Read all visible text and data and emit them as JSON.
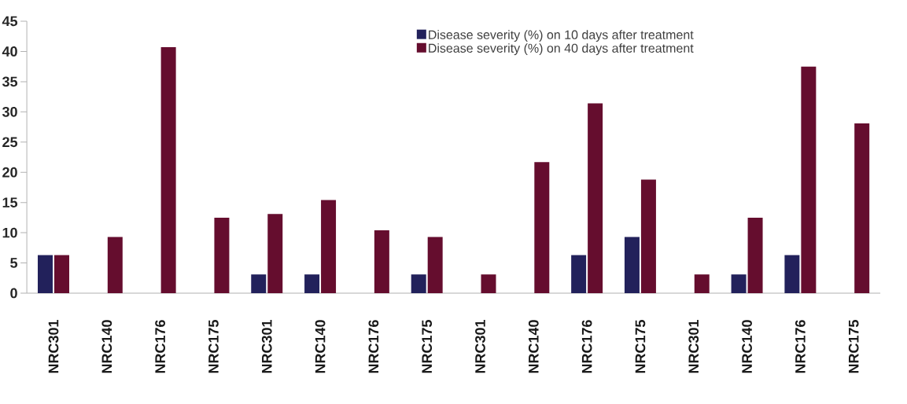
{
  "chart_data": {
    "type": "bar",
    "categories": [
      "NRC301",
      "NRC140",
      "NRC176",
      "NRC175",
      "NRC301",
      "NRC140",
      "NRC176",
      "NRC175",
      "NRC301",
      "NRC140",
      "NRC176",
      "NRC175",
      "NRC301",
      "NRC140",
      "NRC176",
      "NRC175"
    ],
    "series": [
      {
        "name": "Disease severity (%) on 10 days after treatment",
        "color": "#22215b",
        "values": [
          6.3,
          0,
          0,
          0,
          3.1,
          3.1,
          0,
          3.1,
          0,
          0,
          6.3,
          9.3,
          0,
          3.1,
          6.3,
          0
        ]
      },
      {
        "name": "Disease severity (%) on 40 days after treatment",
        "color": "#650d2e",
        "values": [
          6.3,
          9.3,
          40.7,
          12.5,
          13.1,
          15.4,
          10.4,
          9.3,
          3.1,
          21.7,
          31.4,
          18.8,
          3.1,
          12.5,
          37.5,
          28.1
        ]
      }
    ],
    "ylim": [
      0,
      45
    ],
    "yticks": [
      0,
      5,
      10,
      15,
      20,
      25,
      30,
      35,
      40,
      45
    ],
    "grid": false,
    "legend": "top"
  }
}
